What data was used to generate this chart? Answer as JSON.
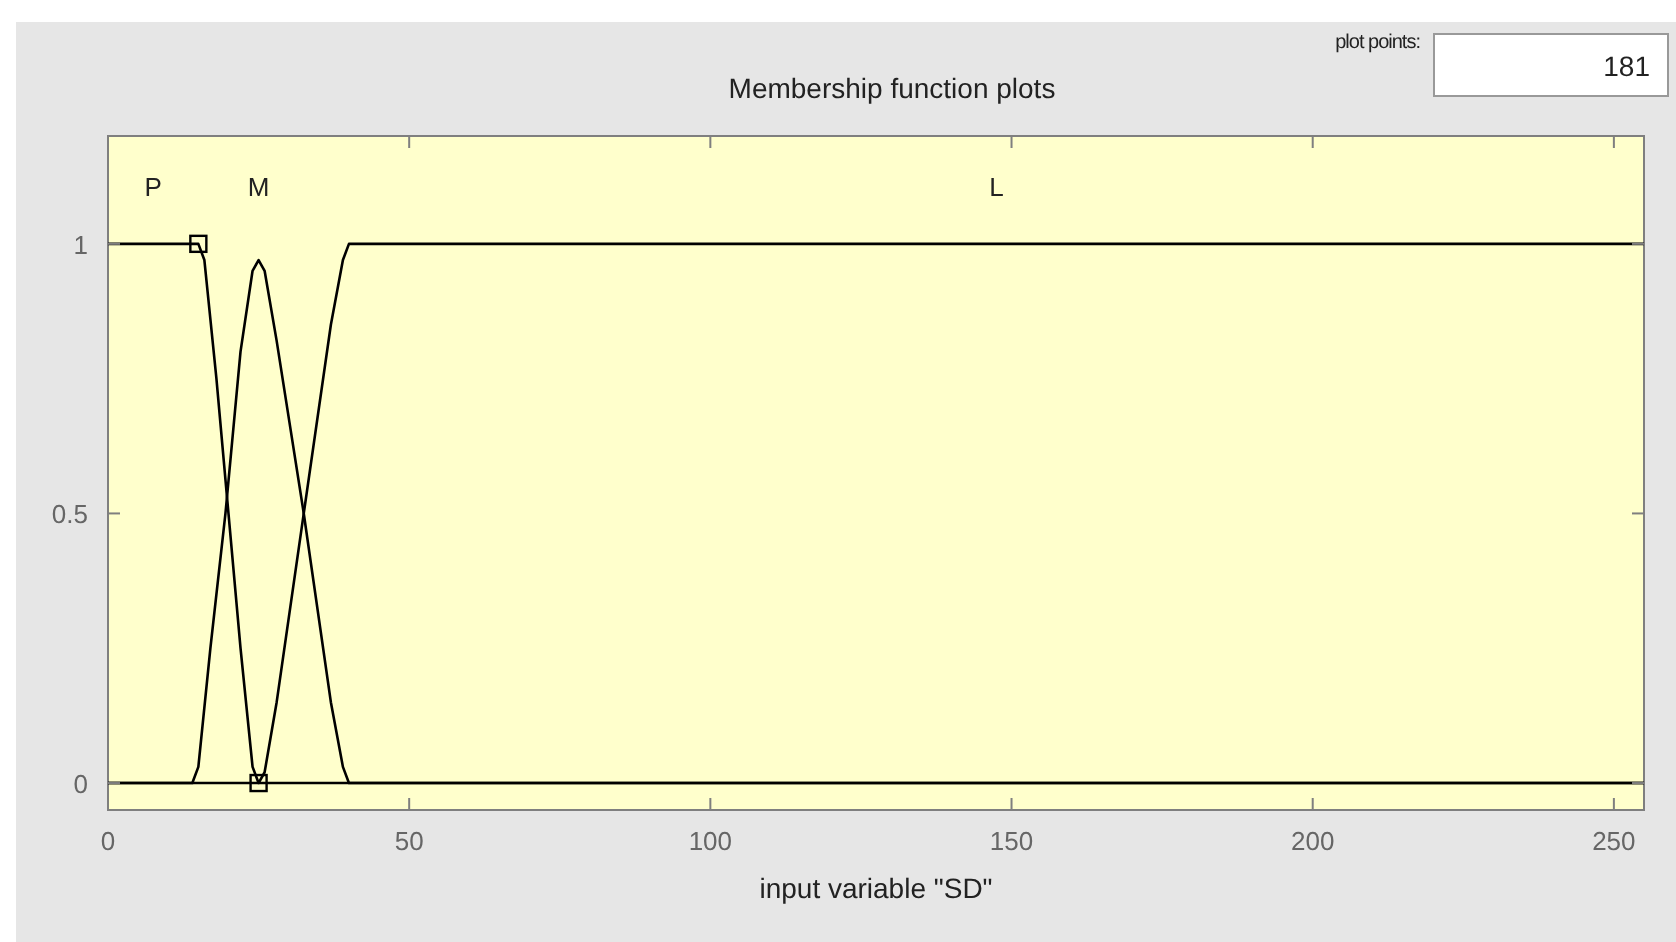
{
  "chart_data": {
    "type": "line",
    "title": "Membership function plots",
    "xlabel": "input variable \"SD\"",
    "xlim": [
      0,
      255
    ],
    "ylim": [
      -0.05,
      1.2
    ],
    "xticks": [
      0,
      50,
      100,
      150,
      200,
      250
    ],
    "yticks": [
      0,
      0.5,
      1
    ],
    "grid": false,
    "marker": "none",
    "line_style": "solid",
    "annotations": [
      "plot points:",
      "181"
    ],
    "series": [
      {
        "name": "P",
        "color": "#000000",
        "x": [
          0,
          15,
          16,
          18,
          20,
          22,
          24,
          25,
          255
        ],
        "values": [
          1,
          1,
          0.97,
          0.75,
          0.5,
          0.25,
          0.03,
          0,
          0
        ]
      },
      {
        "name": "M",
        "color": "#000000",
        "x": [
          0,
          14,
          15,
          17,
          19.5,
          22,
          24,
          25,
          26,
          28,
          32.5,
          37,
          39,
          40,
          255
        ],
        "values": [
          0,
          0,
          0.03,
          0.25,
          0.5,
          0.8,
          0.95,
          0.97,
          0.95,
          0.82,
          0.5,
          0.15,
          0.03,
          0,
          0
        ]
      },
      {
        "name": "L",
        "color": "#000000",
        "x": [
          0,
          25,
          26,
          28,
          32.5,
          37,
          39,
          40,
          255
        ],
        "values": [
          0,
          0,
          0.02,
          0.15,
          0.5,
          0.85,
          0.97,
          1,
          1
        ]
      },
      {
        "type": "scatter",
        "marker": "square",
        "color": "#000000",
        "x": [
          15,
          25
        ],
        "values": [
          1,
          0
        ]
      }
    ]
  }
}
